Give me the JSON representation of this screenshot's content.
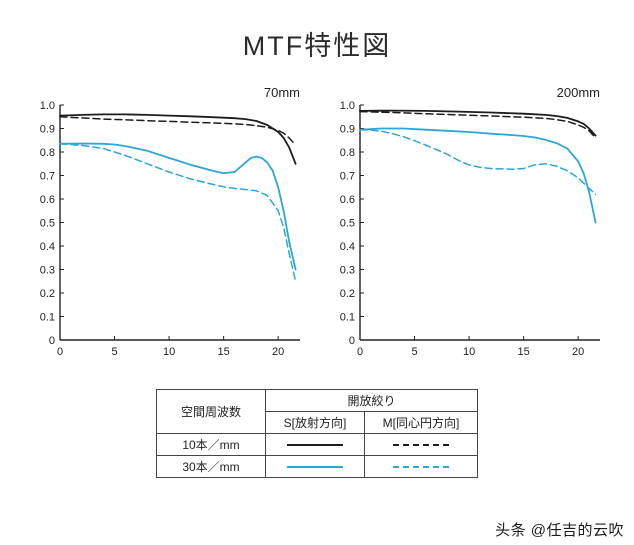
{
  "page": {
    "title": "MTF特性図",
    "watermark": "头条 @任吉的云吹"
  },
  "colors": {
    "black_line": "#1c1c1c",
    "blue_line": "#2aa7d8",
    "axis": "#222222"
  },
  "legend": {
    "col_spatial": "空間周波数",
    "col_aperture": "開放絞り",
    "col_s": "S[放射方向]",
    "col_m": "M[同心円方向]",
    "rows": [
      {
        "label": "10本／mm",
        "color": "#1c1c1c"
      },
      {
        "label": "30本／mm",
        "color": "#2aa7d8"
      }
    ]
  },
  "chart_data": [
    {
      "type": "line",
      "title": "70mm",
      "xlabel": "",
      "ylabel": "",
      "xlim": [
        0,
        22
      ],
      "ylim": [
        0,
        1.0
      ],
      "xticks": [
        0,
        5,
        10,
        15,
        20
      ],
      "yticks": [
        0,
        0.1,
        0.2,
        0.3,
        0.4,
        0.5,
        0.6,
        0.7,
        0.8,
        0.9,
        1.0
      ],
      "grid": false,
      "series": [
        {
          "name": "10本/mm S[放射方向]",
          "color": "#1c1c1c",
          "dash": "solid",
          "x": [
            0,
            2,
            4,
            6,
            8,
            10,
            12,
            14,
            16,
            17,
            18,
            19,
            20,
            20.5,
            21,
            21.6
          ],
          "y": [
            0.955,
            0.958,
            0.96,
            0.96,
            0.958,
            0.955,
            0.952,
            0.948,
            0.944,
            0.94,
            0.932,
            0.915,
            0.885,
            0.86,
            0.82,
            0.75
          ]
        },
        {
          "name": "10本/mm M[同心円方向]",
          "color": "#1c1c1c",
          "dash": "dashed",
          "x": [
            0,
            2,
            4,
            6,
            8,
            10,
            12,
            14,
            16,
            17,
            18,
            19,
            20,
            20.5,
            21,
            21.6
          ],
          "y": [
            0.95,
            0.945,
            0.94,
            0.937,
            0.933,
            0.93,
            0.927,
            0.924,
            0.92,
            0.917,
            0.912,
            0.905,
            0.892,
            0.88,
            0.86,
            0.83
          ]
        },
        {
          "name": "30本/mm S[放射方向]",
          "color": "#2aa7d8",
          "dash": "solid",
          "x": [
            0,
            2,
            4,
            5,
            6,
            8,
            10,
            12,
            14,
            15,
            16,
            17,
            17.5,
            18,
            18.5,
            19,
            19.5,
            20,
            20.5,
            21,
            21.6
          ],
          "y": [
            0.835,
            0.836,
            0.835,
            0.832,
            0.825,
            0.805,
            0.775,
            0.745,
            0.72,
            0.71,
            0.715,
            0.755,
            0.775,
            0.78,
            0.775,
            0.755,
            0.72,
            0.65,
            0.55,
            0.42,
            0.3
          ]
        },
        {
          "name": "30本/mm M[同心円方向]",
          "color": "#2aa7d8",
          "dash": "dashed",
          "x": [
            0,
            2,
            4,
            6,
            8,
            10,
            12,
            14,
            15,
            16,
            17,
            18,
            19,
            20,
            20.5,
            21,
            21.6
          ],
          "y": [
            0.835,
            0.828,
            0.815,
            0.785,
            0.75,
            0.715,
            0.685,
            0.662,
            0.652,
            0.645,
            0.64,
            0.635,
            0.615,
            0.55,
            0.48,
            0.37,
            0.25
          ]
        }
      ]
    },
    {
      "type": "line",
      "title": "200mm",
      "xlabel": "",
      "ylabel": "",
      "xlim": [
        0,
        22
      ],
      "ylim": [
        0,
        1.0
      ],
      "xticks": [
        0,
        5,
        10,
        15,
        20
      ],
      "yticks": [
        0,
        0.1,
        0.2,
        0.3,
        0.4,
        0.5,
        0.6,
        0.7,
        0.8,
        0.9,
        1.0
      ],
      "grid": false,
      "series": [
        {
          "name": "10本/mm S[放射方向]",
          "color": "#1c1c1c",
          "dash": "solid",
          "x": [
            0,
            3,
            6,
            9,
            12,
            15,
            17,
            18,
            19,
            20,
            20.5,
            21,
            21.6
          ],
          "y": [
            0.975,
            0.976,
            0.975,
            0.972,
            0.968,
            0.963,
            0.958,
            0.953,
            0.945,
            0.93,
            0.92,
            0.9,
            0.87
          ]
        },
        {
          "name": "10本/mm M[同心円方向]",
          "color": "#1c1c1c",
          "dash": "dashed",
          "x": [
            0,
            3,
            6,
            9,
            12,
            15,
            17,
            18,
            19,
            20,
            20.5,
            21,
            21.6
          ],
          "y": [
            0.972,
            0.968,
            0.963,
            0.958,
            0.953,
            0.948,
            0.943,
            0.938,
            0.93,
            0.915,
            0.905,
            0.89,
            0.86
          ]
        },
        {
          "name": "30本/mm S[放射方向]",
          "color": "#2aa7d8",
          "dash": "solid",
          "x": [
            0,
            2,
            4,
            6,
            8,
            10,
            12,
            14,
            15,
            16,
            17,
            18,
            19,
            20,
            20.5,
            21,
            21.6
          ],
          "y": [
            0.895,
            0.9,
            0.9,
            0.895,
            0.89,
            0.885,
            0.878,
            0.872,
            0.868,
            0.862,
            0.852,
            0.838,
            0.815,
            0.76,
            0.71,
            0.63,
            0.5
          ]
        },
        {
          "name": "30本/mm M[同心円方向]",
          "color": "#2aa7d8",
          "dash": "dashed",
          "x": [
            0,
            1,
            2,
            3,
            4,
            5,
            6,
            7,
            8,
            9,
            10,
            11,
            12,
            13,
            14,
            15,
            16,
            17,
            18,
            19,
            20,
            21,
            21.6
          ],
          "y": [
            0.895,
            0.893,
            0.888,
            0.878,
            0.865,
            0.848,
            0.83,
            0.81,
            0.79,
            0.765,
            0.745,
            0.735,
            0.73,
            0.728,
            0.727,
            0.73,
            0.745,
            0.75,
            0.74,
            0.72,
            0.69,
            0.645,
            0.62
          ]
        }
      ]
    }
  ]
}
